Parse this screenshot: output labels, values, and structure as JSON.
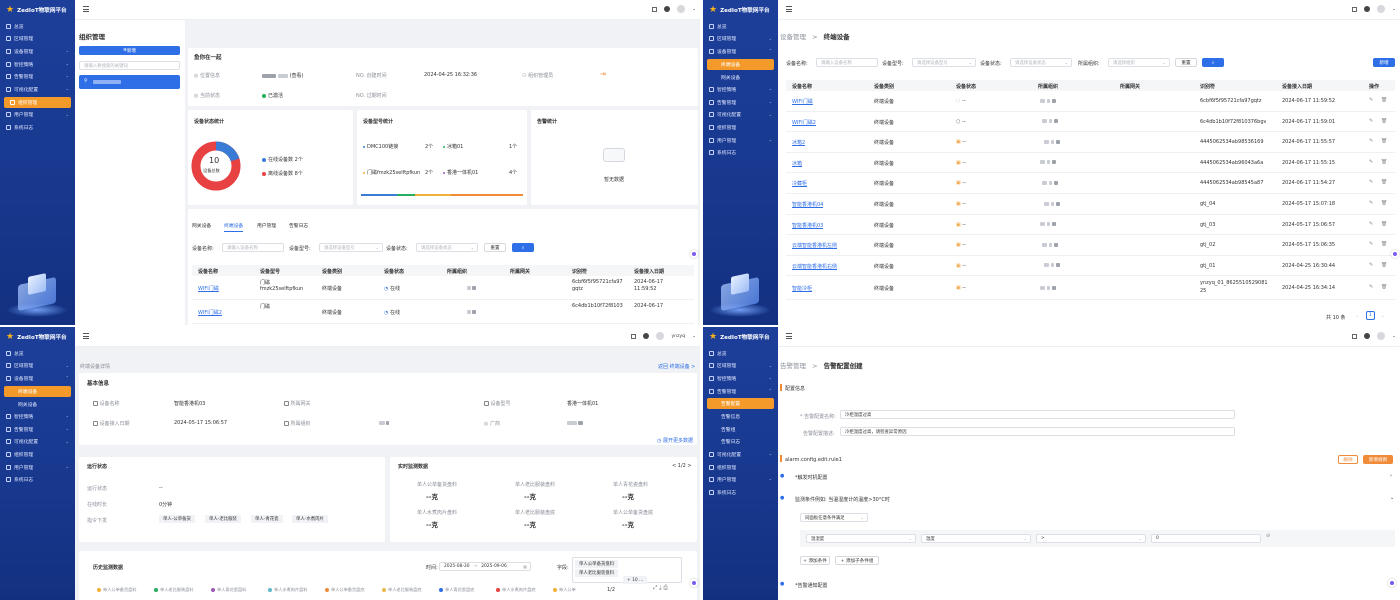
{
  "colors": {
    "sidebar": "#1d3f9a",
    "active": "#f49a2a",
    "primary": "#2e6ee6",
    "online": "#3a7bd5",
    "offline": "#e84141"
  },
  "app_name": "ZedIoT物联网平台",
  "q1": {
    "menu": [
      {
        "label": "总览"
      },
      {
        "label": "区域管理"
      },
      {
        "label": "设备管理"
      },
      {
        "label": "智控策略"
      },
      {
        "label": "告警管理"
      },
      {
        "label": "可视化配置"
      },
      {
        "label": "组织管理"
      },
      {
        "label": "用户管理"
      },
      {
        "label": "系统日志"
      }
    ],
    "page_title": "组织管理",
    "add_label": "新增",
    "tree_search_placeholder": "请输入要搜索的关键词",
    "org_title": "鱼你在一起",
    "info": {
      "location_label": "位置信息",
      "location_value": "(查看)",
      "created_label": "创建时间",
      "created_value": "2024-04-25 16:32:36",
      "admin_label": "组织管理员",
      "status_label": "当前状态",
      "status_value": "已激活",
      "expire_label": "过期时间"
    },
    "stats_title": "设备状态统计",
    "total": "10",
    "total_label": "设备总数",
    "online_label": "在线设备数 2个",
    "offline_label": "离线设备数 8个",
    "model_title": "设备型号统计",
    "models": [
      {
        "name": "DMC100链接",
        "count": "2个"
      },
      {
        "name": "冰箱01",
        "count": "1个"
      },
      {
        "name": "门磁fmzk25selftpfkun",
        "count": "2个"
      },
      {
        "name": "香港一体机01",
        "count": "4个"
      }
    ],
    "alarm_title": "告警统计",
    "no_data": "暂无数据",
    "tabs": [
      "网关设备",
      "终端设备",
      "用户管理",
      "告警日志"
    ],
    "filter": {
      "name_label": "设备名称:",
      "name_ph": "请输入设备名称",
      "model_label": "设备型号:",
      "model_ph": "请选择设备型号",
      "status_label": "设备状态:",
      "status_ph": "请选择设备状态",
      "reset": "重置"
    },
    "columns": [
      "设备名称",
      "设备型号",
      "设备类别",
      "设备状态",
      "所属组织",
      "所属网关",
      "识别符",
      "设备接入日期"
    ],
    "rows": [
      {
        "name": "WIFI门磁",
        "model1": "门磁",
        "model2": "fmzk25selftpfkun",
        "type": "终端设备",
        "status": "在线",
        "id1": "6cbf6f5f95721cfa97",
        "id2": "gqtz",
        "date1": "2024-06-17",
        "date2": "11:59:52"
      },
      {
        "name": "WIFI门磁2",
        "model1": "门磁",
        "model2": "",
        "type": "终端设备",
        "status": "在线",
        "id1": "6c4db1b10f72f8103",
        "id2": "",
        "date1": "2024-06-17",
        "date2": ""
      }
    ]
  },
  "q2": {
    "menu_top": [
      {
        "label": "总览"
      },
      {
        "label": "区域管理"
      },
      {
        "label": "设备管理"
      }
    ],
    "menu_sub": [
      {
        "label": "终端设备"
      },
      {
        "label": "网关设备"
      }
    ],
    "menu_bottom": [
      {
        "label": "智控策略"
      },
      {
        "label": "告警管理"
      },
      {
        "label": "可视化配置"
      },
      {
        "label": "组织管理"
      },
      {
        "label": "用户管理"
      },
      {
        "label": "系统日志"
      }
    ],
    "breadcrumb_parent": "设备管理",
    "breadcrumb_sep": ">",
    "breadcrumb_current": "终端设备",
    "filter": {
      "name_label": "设备名称:",
      "name_ph": "请输入设备名称",
      "model_label": "设备型号:",
      "model_ph": "请选择设备型号",
      "status_label": "设备状态:",
      "status_ph": "请选择设备状态",
      "org_label": "所属组织:",
      "org_ph": "请选择组织",
      "reset": "重置",
      "add": "新增"
    },
    "columns": [
      "设备名称",
      "设备类别",
      "设备状态",
      "所属组织",
      "所属网关",
      "识别符",
      "设备接入日期",
      "操作"
    ],
    "rows": [
      {
        "name": "WIFI门磁",
        "type": "终端设备",
        "status": "--",
        "id": "6cbf6f5f95721cfa97gqtz",
        "date": "2024-06-17 11:59:52"
      },
      {
        "name": "WIFI门磁2",
        "type": "终端设备",
        "status": "--",
        "id": "6c4db1b10f72f810376bgv",
        "date": "2024-06-17 11:59:01"
      },
      {
        "name": "冰箱2",
        "type": "终端设备",
        "status": "--",
        "id": "4445062534ab98536169",
        "date": "2024-06-17 11:55:57"
      },
      {
        "name": "冰箱",
        "type": "终端设备",
        "status": "--",
        "id": "4445062534ab96043a6a",
        "date": "2024-06-17 11:55:15"
      },
      {
        "name": "冷藏柜",
        "type": "终端设备",
        "status": "--",
        "id": "4445062534ab98545a87",
        "date": "2024-06-17 11:54:27"
      },
      {
        "name": "智能香港机04",
        "type": "终端设备",
        "status": "--",
        "id": "gtj_04",
        "date": "2024-05-17 15:07:18"
      },
      {
        "name": "智能香港机03",
        "type": "终端设备",
        "status": "--",
        "id": "gtj_03",
        "date": "2024-05-17 15:06:57"
      },
      {
        "name": "云端智能香港机左侧",
        "type": "终端设备",
        "status": "--",
        "id": "gtj_02",
        "date": "2024-05-17 15:06:35"
      },
      {
        "name": "云端智能香港机右侧",
        "type": "终端设备",
        "status": "--",
        "id": "gtj_01",
        "date": "2024-04-25 16:30:44"
      },
      {
        "name": "智能冷柜",
        "type": "终端设备",
        "status": "--",
        "id1": "ynzyq_01_8625510529081",
        "id2": "25",
        "date": "2024-04-25 16:34:14"
      }
    ],
    "total": "共 10 条",
    "page": "1"
  },
  "q3": {
    "user": "ynzyq",
    "menu_top": [
      {
        "label": "总览"
      },
      {
        "label": "区域管理"
      },
      {
        "label": "设备管理"
      }
    ],
    "menu_sub": [
      {
        "label": "终端设备"
      },
      {
        "label": "网关设备"
      }
    ],
    "menu_bottom": [
      {
        "label": "智控策略"
      },
      {
        "label": "告警管理"
      },
      {
        "label": "可视化配置"
      },
      {
        "label": "组织管理"
      },
      {
        "label": "用户管理"
      },
      {
        "label": "系统日志"
      }
    ],
    "page_label": "终端设备详情",
    "back": "返回 终端设备 >",
    "basic_title": "基本信息",
    "basic": {
      "name_label": "设备名称",
      "name_value": "智能香港机03",
      "gateway_label": "所属网关",
      "model_label": "设备型号",
      "model_value": "香港一体机01",
      "date_label": "设备接入日期",
      "date_value": "2024-05-17 15:06:57",
      "org_label": "所属组织",
      "area_label": "广商"
    },
    "more": "展开更多数据",
    "run_title": "运行状态",
    "run": {
      "status_label": "运行状态",
      "status_value": "--",
      "duration_label": "在线时长",
      "duration_value": "0分钟",
      "cmd_label": "指令下发",
      "cmds": [
        "单人-公单备货",
        "单人-老比服装",
        "单人-青花瓷",
        "单人-水煮肉片"
      ]
    },
    "rt_title": "实时监测数据",
    "rt_pager": "< 1/2 >",
    "rt": [
      {
        "label": "单人公单备货盘料",
        "value": "--克"
      },
      {
        "label": "单人老比服装盘料",
        "value": "--克"
      },
      {
        "label": "单人青花瓷盘料",
        "value": "--克"
      },
      {
        "label": "单人水煮肉片盘料",
        "value": "--克"
      },
      {
        "label": "单人老比服装盘底",
        "value": "--克"
      },
      {
        "label": "单人公单备货盘底",
        "value": "--克"
      }
    ],
    "hist_title": "历史监测数据",
    "hist": {
      "time_label": "时间:",
      "start": "2025-08-30",
      "sep": "→",
      "end": "2025-09-06",
      "field_label": "字段:",
      "chip1": "单人公单备货盘料",
      "chip2": "单人老比服装盘料",
      "more_chip": "+ 10 ...",
      "pager": "1/2"
    },
    "legend": [
      "单人公单备货盘料",
      "单人老比服装盘料",
      "单人青花瓷盘料",
      "单人水煮肉片盘料",
      "单人公单备货盘底",
      "单人老比服装盘底",
      "单人青花瓷盘底",
      "单人水煮肉片盘底",
      "单人公单"
    ]
  },
  "q4": {
    "menu_top": [
      {
        "label": "总览"
      },
      {
        "label": "区域管理"
      },
      {
        "label": "智控策略"
      },
      {
        "label": "告警管理"
      }
    ],
    "menu_sub": [
      {
        "label": "告警配置"
      },
      {
        "label": "告警信息"
      },
      {
        "label": "告警组"
      },
      {
        "label": "告警日志"
      }
    ],
    "menu_bottom": [
      {
        "label": "可视化配置"
      },
      {
        "label": "组织管理"
      },
      {
        "label": "用户管理"
      },
      {
        "label": "系统日志"
      }
    ],
    "breadcrumb_parent": "告警管理",
    "breadcrumb_sep": ">",
    "breadcrumb_current": "告警配置创建",
    "section_title": "配置信息",
    "name_label": "* 告警配置名称:",
    "name_value": "冷柜温度过高",
    "desc_label": "告警配置描述:",
    "desc_value": "冷柜温度过高，请检查异常原因",
    "rule_id": "alarm.config.edit.rule1",
    "delete": "删除",
    "add_rule": "新增规则",
    "trigger_title": "*触发时机配置",
    "cond_title": "监测条件例如: 当温湿度计的温度>30°C时",
    "cond_mode": "同面板任意条件满足",
    "cond": {
      "device": "温湿度",
      "attr": "温度",
      "op": ">",
      "value": "0"
    },
    "add_cond": "+ 添加条件",
    "add_sub": "+ 添加子条件组",
    "notify_title": "*告警通知配置"
  }
}
